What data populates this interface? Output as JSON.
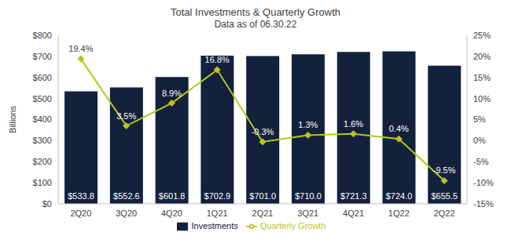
{
  "chart_data": {
    "type": "bar",
    "title": "Total Investments & Quarterly Growth",
    "subtitle": "Data as of 06.30.22",
    "y_label": "Billions",
    "categories": [
      "2Q20",
      "3Q20",
      "4Q20",
      "1Q21",
      "2Q21",
      "3Q21",
      "4Q21",
      "1Q22",
      "2Q22"
    ],
    "series": [
      {
        "name": "Investments",
        "type": "bar",
        "color": "#14213d",
        "values": [
          533.8,
          552.6,
          601.8,
          702.9,
          701.0,
          710.0,
          721.3,
          724.0,
          655.5
        ],
        "value_labels": [
          "$533.8",
          "$552.6",
          "$601.8",
          "$702.9",
          "$701.0",
          "$710.0",
          "$721.3",
          "$724.0",
          "$655.5"
        ]
      },
      {
        "name": "Quarterly Growth",
        "type": "line",
        "axis": "y2",
        "color": "#b8c61c",
        "marker": "diamond",
        "values": [
          19.4,
          3.5,
          8.9,
          16.8,
          -0.3,
          1.3,
          1.6,
          0.4,
          -9.5
        ],
        "value_labels": [
          "19.4%",
          "3.5%",
          "8.9%",
          "16.8%",
          "-0.3%",
          "1.3%",
          "1.6%",
          "0.4%",
          "-9.5%"
        ]
      }
    ],
    "ylim": [
      0,
      800
    ],
    "yticks": [
      {
        "value": 0,
        "label": "$0"
      },
      {
        "value": 100,
        "label": "$100"
      },
      {
        "value": 200,
        "label": "$200"
      },
      {
        "value": 300,
        "label": "$300"
      },
      {
        "value": 400,
        "label": "$400"
      },
      {
        "value": 500,
        "label": "$500"
      },
      {
        "value": 600,
        "label": "$600"
      },
      {
        "value": 700,
        "label": "$700"
      },
      {
        "value": 800,
        "label": "$800"
      }
    ],
    "y2lim": [
      -15,
      25
    ],
    "y2ticks": [
      {
        "value": -15,
        "label": "-15%"
      },
      {
        "value": -10,
        "label": "-10%"
      },
      {
        "value": -5,
        "label": "-5%"
      },
      {
        "value": 0,
        "label": "0%"
      },
      {
        "value": 5,
        "label": "5%"
      },
      {
        "value": 10,
        "label": "10%"
      },
      {
        "value": 15,
        "label": "15%"
      },
      {
        "value": 20,
        "label": "20%"
      },
      {
        "value": 25,
        "label": "25%"
      }
    ],
    "grid": false,
    "legend": "bottom",
    "data_labels": true
  }
}
